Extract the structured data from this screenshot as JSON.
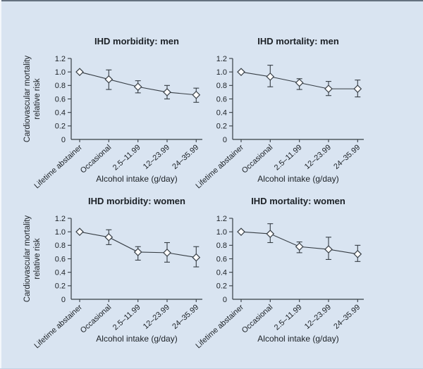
{
  "page": {
    "background_color": "#d9e4f1",
    "top_edge_color": "#65717f"
  },
  "style": {
    "axis_color": "#363d44",
    "line_color": "#363d44",
    "marker_fill": "#ffffff",
    "marker_stroke": "#363d44",
    "text_color": "#1c2126"
  },
  "chart_data": [
    {
      "type": "line",
      "title": "IHD morbidity: men",
      "categories": [
        "Lifetime abstainer",
        "Occasional",
        "2.5–11.99",
        "12–23.99",
        "24–35.99"
      ],
      "values": [
        1.0,
        0.89,
        0.78,
        0.7,
        0.66
      ],
      "ci_low": [
        null,
        0.74,
        0.69,
        0.6,
        0.55
      ],
      "ci_high": [
        null,
        1.03,
        0.87,
        0.8,
        0.76
      ],
      "xlabel": "Alcohol intake (g/day)",
      "ylabel_lines": [
        "Cardiovascular mortality",
        "relative risk"
      ],
      "show_ylabel": true,
      "ytick_labels": [
        "0",
        "0.2",
        "0.4",
        "0.6",
        "0.8",
        "1.0",
        "1.2"
      ],
      "yticks": [
        0,
        0.2,
        0.4,
        0.6,
        0.8,
        1.0,
        1.2
      ],
      "ylim": [
        0,
        1.2
      ],
      "marker": "diamond",
      "grid": false,
      "legend": "none"
    },
    {
      "type": "line",
      "title": "IHD mortality: men",
      "categories": [
        "Lifetime abstainer",
        "Occasional",
        "2.5–11.99",
        "12–23.99",
        "24–35.99"
      ],
      "values": [
        1.0,
        0.93,
        0.84,
        0.75,
        0.75
      ],
      "ci_low": [
        null,
        0.78,
        0.74,
        0.65,
        0.63
      ],
      "ci_high": [
        null,
        1.1,
        0.9,
        0.86,
        0.88
      ],
      "xlabel": "Alcohol intake (g/day)",
      "ylabel_lines": [],
      "show_ylabel": false,
      "ytick_labels": [
        "0",
        "0.2",
        "0.4",
        "0.6",
        "0.8",
        "1.0",
        "1.2"
      ],
      "yticks": [
        0,
        0.2,
        0.4,
        0.6,
        0.8,
        1.0,
        1.2
      ],
      "ylim": [
        0,
        1.2
      ],
      "marker": "diamond",
      "grid": false,
      "legend": "none"
    },
    {
      "type": "line",
      "title": "IHD morbidity: women",
      "categories": [
        "Lifetime abstainer",
        "Occasional",
        "2.5–11.99",
        "12–23.99",
        "24–35.99"
      ],
      "values": [
        1.0,
        0.92,
        0.7,
        0.69,
        0.62
      ],
      "ci_low": [
        null,
        0.81,
        0.58,
        0.55,
        0.48
      ],
      "ci_high": [
        null,
        1.03,
        0.78,
        0.84,
        0.78
      ],
      "xlabel": "Alcohol intake (g/day)",
      "ylabel_lines": [
        "Cardiovascular mortality",
        "relative risk"
      ],
      "show_ylabel": true,
      "ytick_labels": [
        "0",
        "0.2",
        "0.4",
        "0.6",
        "0.8",
        "1.0",
        "1.2"
      ],
      "yticks": [
        0,
        0.2,
        0.4,
        0.6,
        0.8,
        1.0,
        1.2
      ],
      "ylim": [
        0,
        1.2
      ],
      "marker": "diamond",
      "grid": false,
      "legend": "none"
    },
    {
      "type": "line",
      "title": "IHD mortality: women",
      "categories": [
        "Lifetime abstainer",
        "Occasional",
        "2.5–11.99",
        "12–23.99",
        "24–35.99"
      ],
      "values": [
        1.0,
        0.97,
        0.78,
        0.74,
        0.67
      ],
      "ci_low": [
        null,
        0.84,
        0.69,
        0.59,
        0.56
      ],
      "ci_high": [
        null,
        1.12,
        0.85,
        0.92,
        0.8
      ],
      "xlabel": "Alcohol intake (g/day)",
      "ylabel_lines": [],
      "show_ylabel": false,
      "ytick_labels": [
        "0",
        "0.2",
        "0.4",
        "0.6",
        "0.8",
        "1.0",
        "1.2"
      ],
      "yticks": [
        0,
        0.2,
        0.4,
        0.6,
        0.8,
        1.0,
        1.2
      ],
      "ylim": [
        0,
        1.2
      ],
      "marker": "diamond",
      "grid": false,
      "legend": "none"
    }
  ]
}
